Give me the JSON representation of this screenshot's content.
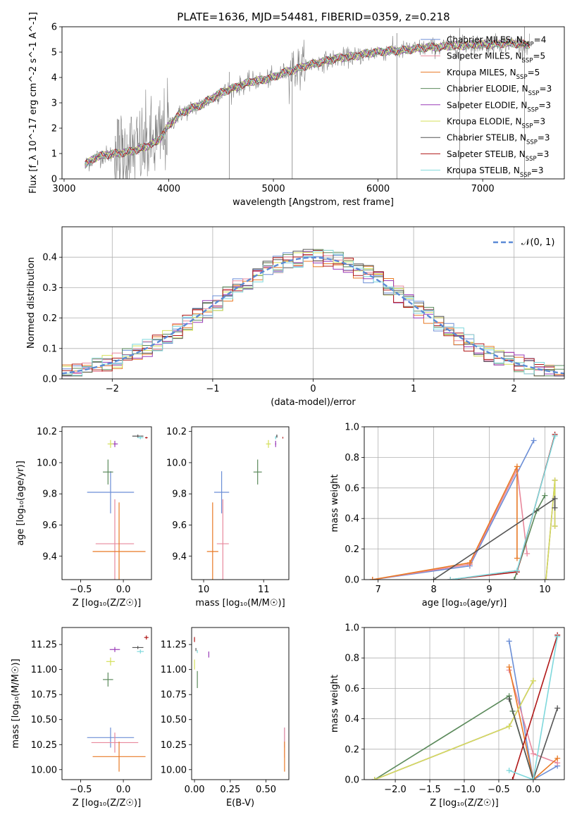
{
  "colors": {
    "chabrier_miles": "#6b8ed6",
    "salpeter_miles": "#e8889c",
    "kroupa_miles": "#e87a26",
    "chabrier_elodie": "#5b8a5b",
    "salpeter_elodie": "#9a3cb8",
    "kroupa_elodie": "#d4df5a",
    "chabrier_stelib": "#555555",
    "salpeter_stelib": "#b01818",
    "kroupa_stelib": "#7fd8dc",
    "data": "#808080",
    "normal": "#5b8ad6"
  },
  "chart_data": [
    {
      "type": "line",
      "title": "PLATE=1636, MJD=54481, FIBERID=0359, z=0.218",
      "xlabel": "wavelength [Angstrom, rest frame]",
      "ylabel": "Flux [f_λ 10^-17 erg cm^-2 s^-1 A^-1]",
      "xlim": [
        2980,
        7780
      ],
      "ylim": [
        0,
        6
      ],
      "xticks": [
        "3000",
        "4000",
        "5000",
        "6000",
        "7000"
      ],
      "yticks": [
        "0",
        "1",
        "2",
        "3",
        "4",
        "5",
        "6"
      ],
      "grid": false,
      "legend_position": "right",
      "continuum": {
        "x": [
          3200,
          3300,
          3400,
          3500,
          3600,
          3700,
          3800,
          3900,
          4000,
          4100,
          4200,
          4300,
          4400,
          4500,
          4600,
          4700,
          4800,
          4900,
          5000,
          5100,
          5200,
          5300,
          5400,
          5500,
          5600,
          5700,
          5800,
          5900,
          6000,
          6100,
          6200,
          6300,
          6400,
          6500,
          6600,
          6700,
          6800,
          6900,
          7000,
          7100,
          7200,
          7300,
          7400
        ],
        "y": [
          0.55,
          0.85,
          0.95,
          1.0,
          1.05,
          1.15,
          1.3,
          1.5,
          2.1,
          2.55,
          2.75,
          2.9,
          3.15,
          3.4,
          3.55,
          3.7,
          3.85,
          3.9,
          4.0,
          4.2,
          4.3,
          4.45,
          4.55,
          4.65,
          4.75,
          4.8,
          4.85,
          4.95,
          5.0,
          5.05,
          5.05,
          5.1,
          5.15,
          5.2,
          5.2,
          5.25,
          5.25,
          5.3,
          5.3,
          5.3,
          5.35,
          5.35,
          5.3
        ]
      },
      "series": [
        {
          "name": "Chabrier MILES, N_SSP=4",
          "n_ssp": "4",
          "color_key": "chabrier_miles"
        },
        {
          "name": "Salpeter MILES, N_SSP=5",
          "n_ssp": "5",
          "color_key": "salpeter_miles"
        },
        {
          "name": "Kroupa MILES, N_SSP=5",
          "n_ssp": "5",
          "color_key": "kroupa_miles"
        },
        {
          "name": "Chabrier ELODIE, N_SSP=3",
          "n_ssp": "3",
          "color_key": "chabrier_elodie"
        },
        {
          "name": "Salpeter ELODIE, N_SSP=3",
          "n_ssp": "3",
          "color_key": "salpeter_elodie"
        },
        {
          "name": "Kroupa ELODIE, N_SSP=3",
          "n_ssp": "3",
          "color_key": "kroupa_elodie"
        },
        {
          "name": "Chabrier STELIB, N_SSP=3",
          "n_ssp": "3",
          "color_key": "chabrier_stelib"
        },
        {
          "name": "Salpeter STELIB, N_SSP=3",
          "n_ssp": "3",
          "color_key": "salpeter_stelib"
        },
        {
          "name": "Kroupa STELIB, N_SSP=3",
          "n_ssp": "3",
          "color_key": "kroupa_stelib"
        }
      ]
    },
    {
      "type": "histogram",
      "xlabel": "(data-model)/error",
      "ylabel": "Normed distribution",
      "xlim": [
        -2.5,
        2.5
      ],
      "ylim": [
        0,
        0.5
      ],
      "xticks": [
        "−2",
        "−1",
        "0",
        "1",
        "2"
      ],
      "yticks": [
        "0.0",
        "0.1",
        "0.2",
        "0.3",
        "0.4"
      ],
      "grid": true,
      "legend": "𝒩(0, 1)",
      "legend_position": "top-right",
      "bin_width": 0.1
    },
    {
      "type": "errorbar",
      "xlabel": "Z [log₁₀(Z/Z☉)]",
      "ylabel": "age  [log₁₀(age/yr)]",
      "xlim": [
        -0.72,
        0.33
      ],
      "ylim": [
        9.25,
        10.23
      ],
      "xticks": [
        "−0.5",
        "0.0"
      ],
      "yticks": [
        "9.4",
        "9.6",
        "9.8",
        "10.0",
        "10.2"
      ],
      "points": [
        {
          "series": "chabrier_miles",
          "x": -0.15,
          "xerr": 0.55,
          "y": 9.81,
          "yerr": 0.27
        },
        {
          "series": "salpeter_miles",
          "x": -0.1,
          "xerr": 0.45,
          "y": 9.48,
          "yerr": 0.57
        },
        {
          "series": "kroupa_miles",
          "x": -0.05,
          "xerr": 0.62,
          "y": 9.43,
          "yerr": 0.63
        },
        {
          "series": "chabrier_elodie",
          "x": -0.18,
          "xerr": 0.12,
          "y": 9.94,
          "yerr": 0.16
        },
        {
          "series": "salpeter_elodie",
          "x": -0.1,
          "xerr": 0.07,
          "y": 10.12,
          "yerr": 0.04
        },
        {
          "series": "kroupa_elodie",
          "x": -0.15,
          "xerr": 0.07,
          "y": 10.12,
          "yerr": 0.05
        },
        {
          "series": "chabrier_stelib",
          "x": 0.17,
          "xerr": 0.13,
          "y": 10.17,
          "yerr": 0.02
        },
        {
          "series": "salpeter_stelib",
          "x": 0.27,
          "xerr": 0.03,
          "y": 10.16,
          "yerr": 0.01
        },
        {
          "series": "kroupa_stelib",
          "x": 0.2,
          "xerr": 0.07,
          "y": 10.16,
          "yerr": 0.02
        }
      ]
    },
    {
      "type": "errorbar",
      "xlabel": "mass [log₁₀(M/M☉)]",
      "ylabel": "",
      "xlim": [
        9.8,
        11.42
      ],
      "ylim": [
        9.25,
        10.23
      ],
      "xticks": [
        "10",
        "11"
      ],
      "yticks": [
        "9.4",
        "9.6",
        "9.8",
        "10.0",
        "10.2"
      ],
      "points": [
        {
          "series": "chabrier_miles",
          "x": 10.3,
          "xerr": 0.25,
          "y": 9.81,
          "yerr": 0.27
        },
        {
          "series": "salpeter_miles",
          "x": 10.32,
          "xerr": 0.2,
          "y": 9.48,
          "yerr": 0.57
        },
        {
          "series": "kroupa_miles",
          "x": 10.15,
          "xerr": 0.19,
          "y": 9.43,
          "yerr": 0.63
        },
        {
          "series": "chabrier_elodie",
          "x": 10.9,
          "xerr": 0.14,
          "y": 9.94,
          "yerr": 0.16
        },
        {
          "series": "salpeter_elodie",
          "x": 11.2,
          "xerr": 0.02,
          "y": 10.12,
          "yerr": 0.04
        },
        {
          "series": "kroupa_elodie",
          "x": 11.08,
          "xerr": 0.08,
          "y": 10.12,
          "yerr": 0.05
        },
        {
          "series": "chabrier_stelib",
          "x": 11.22,
          "xerr": 0.02,
          "y": 10.17,
          "yerr": 0.02
        },
        {
          "series": "salpeter_stelib",
          "x": 11.32,
          "xerr": 0.01,
          "y": 10.16,
          "yerr": 0.01
        },
        {
          "series": "kroupa_stelib",
          "x": 11.2,
          "xerr": 0.02,
          "y": 10.16,
          "yerr": 0.02
        }
      ]
    },
    {
      "type": "line",
      "xlabel": "age  [log₁₀(age/yr)]",
      "ylabel": "mass weight",
      "xlim": [
        6.75,
        10.35
      ],
      "ylim": [
        0,
        1
      ],
      "xticks": [
        "7",
        "8",
        "9",
        "10"
      ],
      "yticks": [
        "0.0",
        "0.2",
        "0.4",
        "0.6",
        "0.8",
        "1.0"
      ],
      "grid": true,
      "series": [
        {
          "series": "chabrier_miles",
          "x": [
            6.9,
            8.65,
            9.8
          ],
          "y": [
            0.0,
            0.09,
            0.91
          ]
        },
        {
          "series": "salpeter_miles",
          "x": [
            6.9,
            8.65,
            9.5,
            9.68
          ],
          "y": [
            0.0,
            0.1,
            0.72,
            0.17
          ]
        },
        {
          "series": "kroupa_miles",
          "x": [
            6.9,
            8.65,
            9.5,
            9.5
          ],
          "y": [
            0.0,
            0.11,
            0.74,
            0.14
          ]
        },
        {
          "series": "chabrier_elodie",
          "x": [
            9.45,
            9.85,
            10.0
          ],
          "y": [
            0.0,
            0.45,
            0.55
          ]
        },
        {
          "series": "salpeter_elodie",
          "x": [
            10.02,
            10.18,
            10.18
          ],
          "y": [
            0.0,
            0.65,
            0.35
          ]
        },
        {
          "series": "kroupa_elodie",
          "x": [
            10.02,
            10.18,
            10.18
          ],
          "y": [
            0.0,
            0.65,
            0.35
          ]
        },
        {
          "series": "chabrier_stelib",
          "x": [
            8.0,
            10.18,
            10.18
          ],
          "y": [
            0.0,
            0.53,
            0.47
          ]
        },
        {
          "series": "salpeter_stelib",
          "x": [
            8.3,
            9.5,
            10.18
          ],
          "y": [
            0.0,
            0.05,
            0.95
          ]
        },
        {
          "series": "kroupa_stelib",
          "x": [
            8.3,
            9.5,
            10.18
          ],
          "y": [
            0.0,
            0.06,
            0.94
          ]
        }
      ]
    },
    {
      "type": "errorbar",
      "xlabel": "Z [log₁₀(Z/Z☉)]",
      "ylabel": "mass [log₁₀(M/M☉)]",
      "xlim": [
        -0.72,
        0.33
      ],
      "ylim": [
        9.9,
        11.42
      ],
      "xticks": [
        "−0.5",
        "0.0"
      ],
      "yticks": [
        "10.00",
        "10.25",
        "10.50",
        "10.75",
        "11.00",
        "11.25"
      ],
      "points": [
        {
          "series": "chabrier_miles",
          "x": -0.15,
          "xerr": 0.55,
          "y": 10.32,
          "yerr": 0.2
        },
        {
          "series": "salpeter_miles",
          "x": -0.1,
          "xerr": 0.55,
          "y": 10.27,
          "yerr": 0.2
        },
        {
          "series": "kroupa_miles",
          "x": -0.05,
          "xerr": 0.62,
          "y": 10.13,
          "yerr": 0.3
        },
        {
          "series": "chabrier_elodie",
          "x": -0.18,
          "xerr": 0.12,
          "y": 10.9,
          "yerr": 0.14
        },
        {
          "series": "salpeter_elodie",
          "x": -0.1,
          "xerr": 0.12,
          "y": 11.2,
          "yerr": 0.05
        },
        {
          "series": "kroupa_elodie",
          "x": -0.15,
          "xerr": 0.1,
          "y": 11.08,
          "yerr": 0.08
        },
        {
          "series": "chabrier_stelib",
          "x": 0.17,
          "xerr": 0.13,
          "y": 11.22,
          "yerr": 0.03
        },
        {
          "series": "salpeter_stelib",
          "x": 0.27,
          "xerr": 0.05,
          "y": 11.32,
          "yerr": 0.04
        },
        {
          "series": "kroupa_stelib",
          "x": 0.2,
          "xerr": 0.08,
          "y": 11.18,
          "yerr": 0.04
        }
      ]
    },
    {
      "type": "errorbar",
      "xlabel": "E(B-V)",
      "ylabel": "",
      "xlim": [
        -0.02,
        0.66
      ],
      "ylim": [
        9.9,
        11.42
      ],
      "xticks": [
        "0.00",
        "0.25",
        "0.50"
      ],
      "yticks": [
        "10.00",
        "10.25",
        "10.50",
        "10.75",
        "11.00",
        "11.25"
      ],
      "points": [
        {
          "series": "chabrier_miles",
          "x": 0.63,
          "xerr": 0,
          "y": 10.32,
          "yerr": 0.2
        },
        {
          "series": "salpeter_miles",
          "x": 0.63,
          "xerr": 0,
          "y": 10.27,
          "yerr": 0.3
        },
        {
          "series": "kroupa_miles",
          "x": 0.63,
          "xerr": 0,
          "y": 10.13,
          "yerr": 0.3
        },
        {
          "series": "chabrier_elodie",
          "x": 0.02,
          "xerr": 0,
          "y": 10.9,
          "yerr": 0.17
        },
        {
          "series": "salpeter_elodie",
          "x": 0.1,
          "xerr": 0,
          "y": 11.15,
          "yerr": 0.06
        },
        {
          "series": "kroupa_elodie",
          "x": 0.0,
          "xerr": 0,
          "y": 11.05,
          "yerr": 0.1
        },
        {
          "series": "chabrier_stelib",
          "x": 0.01,
          "xerr": 0,
          "y": 11.2,
          "yerr": 0.03
        },
        {
          "series": "salpeter_stelib",
          "x": 0.0,
          "xerr": 0,
          "y": 11.3,
          "yerr": 0.05
        },
        {
          "series": "kroupa_stelib",
          "x": 0.02,
          "xerr": 0,
          "y": 11.18,
          "yerr": 0.03
        }
      ]
    },
    {
      "type": "line",
      "xlabel": "Z [log₁₀(Z/Z☉)]",
      "ylabel": "mass weight",
      "xlim": [
        -2.45,
        0.45
      ],
      "ylim": [
        0,
        1
      ],
      "xticks": [
        "−2.0",
        "−1.5",
        "−1.0",
        "−0.5",
        "0.0"
      ],
      "yticks": [
        "0.0",
        "0.2",
        "0.4",
        "0.6",
        "0.8",
        "1.0"
      ],
      "grid": true,
      "series": [
        {
          "series": "chabrier_miles",
          "x": [
            -0.35,
            0.0,
            0.35
          ],
          "y": [
            0.91,
            0.0,
            0.09
          ]
        },
        {
          "series": "salpeter_miles",
          "x": [
            -0.35,
            0.0,
            0.35
          ],
          "y": [
            0.72,
            0.17,
            0.11
          ]
        },
        {
          "series": "kroupa_miles",
          "x": [
            -0.35,
            0.0,
            0.35
          ],
          "y": [
            0.74,
            0.0,
            0.14
          ]
        },
        {
          "series": "chabrier_elodie",
          "x": [
            -2.3,
            -0.35,
            -0.3,
            0.0
          ],
          "y": [
            0.0,
            0.55,
            0.45,
            0.0
          ]
        },
        {
          "series": "salpeter_elodie",
          "x": [
            -2.3,
            -0.35,
            0.0
          ],
          "y": [
            0.0,
            0.35,
            0.65
          ]
        },
        {
          "series": "kroupa_elodie",
          "x": [
            -2.3,
            -0.35,
            0.0
          ],
          "y": [
            0.0,
            0.35,
            0.65
          ]
        },
        {
          "series": "chabrier_stelib",
          "x": [
            -0.35,
            0.0,
            0.35
          ],
          "y": [
            0.53,
            0.0,
            0.47
          ]
        },
        {
          "series": "salpeter_stelib",
          "x": [
            -0.3,
            0.35
          ],
          "y": [
            0.0,
            0.95
          ]
        },
        {
          "series": "kroupa_stelib",
          "x": [
            -0.35,
            0.0,
            0.35
          ],
          "y": [
            0.06,
            0.0,
            0.94
          ]
        }
      ]
    }
  ]
}
